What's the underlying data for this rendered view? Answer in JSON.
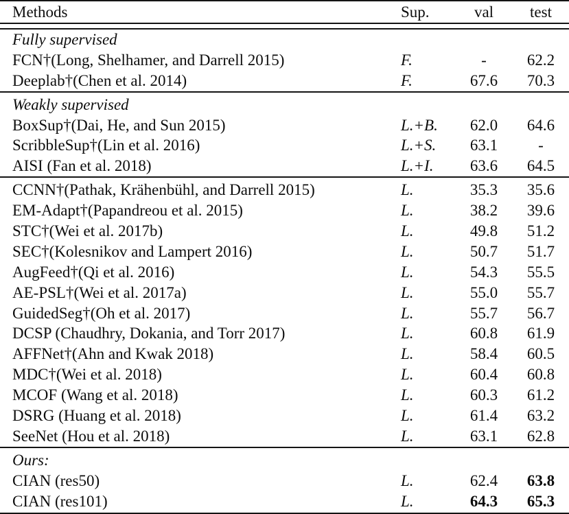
{
  "table": {
    "headers": {
      "methods": "Methods",
      "sup": "Sup.",
      "val": "val",
      "test": "test"
    },
    "rows": [
      {
        "label": "Fully supervised"
      },
      {
        "method": "FCN†(Long, Shelhamer, and Darrell 2015)",
        "sup": "F.",
        "val": "-",
        "test": "62.2"
      },
      {
        "method": "Deeplab†(Chen et al. 2014)",
        "sup": "F.",
        "val": "67.6",
        "test": "70.3"
      },
      {
        "label": "Weakly supervised"
      },
      {
        "method": "BoxSup†(Dai, He, and Sun 2015)",
        "sup": "L.+B.",
        "val": "62.0",
        "test": "64.6"
      },
      {
        "method": "ScribbleSup†(Lin et al. 2016)",
        "sup": "L.+S.",
        "val": "63.1",
        "test": "-"
      },
      {
        "method": "AISI (Fan et al. 2018)",
        "sup": "L.+I.",
        "val": "63.6",
        "test": "64.5"
      },
      {
        "method": "CCNN†(Pathak, Krähenbühl, and Darrell 2015)",
        "sup": "L.",
        "val": "35.3",
        "test": "35.6"
      },
      {
        "method": "EM-Adapt†(Papandreou et al. 2015)",
        "sup": "L.",
        "val": "38.2",
        "test": "39.6"
      },
      {
        "method": "STC†(Wei et al. 2017b)",
        "sup": "L.",
        "val": "49.8",
        "test": "51.2"
      },
      {
        "method": "SEC†(Kolesnikov and Lampert 2016)",
        "sup": "L.",
        "val": "50.7",
        "test": "51.7"
      },
      {
        "method": "AugFeed†(Qi et al. 2016)",
        "sup": "L.",
        "val": "54.3",
        "test": "55.5"
      },
      {
        "method": "AE-PSL†(Wei et al. 2017a)",
        "sup": "L.",
        "val": "55.0",
        "test": "55.7"
      },
      {
        "method": "GuidedSeg†(Oh et al. 2017)",
        "sup": "L.",
        "val": "55.7",
        "test": "56.7"
      },
      {
        "method": "DCSP (Chaudhry, Dokania, and Torr 2017)",
        "sup": "L.",
        "val": "60.8",
        "test": "61.9"
      },
      {
        "method": "AFFNet†(Ahn and Kwak 2018)",
        "sup": "L.",
        "val": "58.4",
        "test": "60.5"
      },
      {
        "method": "MDC†(Wei et al. 2018)",
        "sup": "L.",
        "val": "60.4",
        "test": "60.8"
      },
      {
        "method": "MCOF (Wang et al. 2018)",
        "sup": "L.",
        "val": "60.3",
        "test": "61.2"
      },
      {
        "method": "DSRG (Huang et al. 2018)",
        "sup": "L.",
        "val": "61.4",
        "test": "63.2"
      },
      {
        "method": "SeeNet (Hou et al. 2018)",
        "sup": "L.",
        "val": "63.1",
        "test": "62.8"
      },
      {
        "label": "Ours:"
      },
      {
        "method": "CIAN (res50)",
        "sup": "L.",
        "val": "62.4",
        "test": "63.8"
      },
      {
        "method": "CIAN (res101)",
        "sup": "L.",
        "val": "64.3",
        "test": "65.3"
      }
    ],
    "colors": {
      "text": "#0d0d0d",
      "rule": "#141414",
      "background": "#ffffff"
    }
  }
}
